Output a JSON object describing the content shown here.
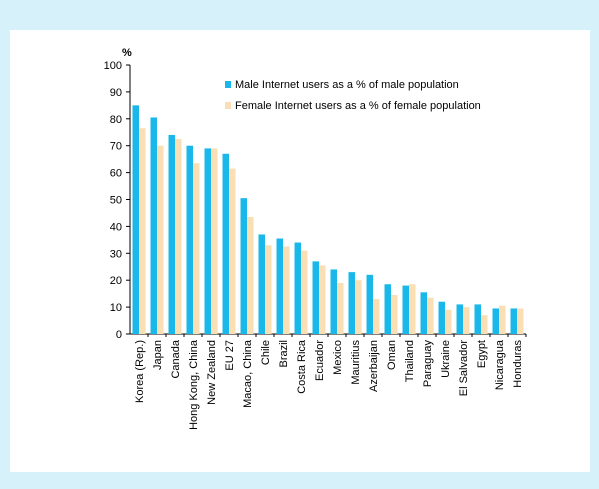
{
  "chart_data": {
    "type": "bar",
    "ylabel": "%",
    "ylim": [
      0,
      100
    ],
    "yticks": [
      0,
      10,
      20,
      30,
      40,
      50,
      60,
      70,
      80,
      90,
      100
    ],
    "legend_position": "top-right",
    "categories": [
      "Korea (Rep.)",
      "Japan",
      "Canada",
      "Hong Kong, China",
      "New Zealand",
      "EU 27",
      "Macao, China",
      "Chile",
      "Brazil",
      "Costa Rica",
      "Ecuador",
      "Mexico",
      "Mauritius",
      "Azerbaijan",
      "Oman",
      "Thailand",
      "Paraguay",
      "Ukraine",
      "El Salvador",
      "Egypt",
      "Nicaragua",
      "Honduras"
    ],
    "series": [
      {
        "name": "Male Internet users as a % of male population",
        "color": "#1ab8ea",
        "values": [
          85,
          80.5,
          74,
          70,
          69,
          67,
          50.5,
          37,
          35.5,
          34,
          27,
          24,
          23,
          22,
          18.5,
          18,
          15.5,
          12,
          11,
          11,
          9.5,
          9.5
        ]
      },
      {
        "name": "Female Internet users as a % of female population",
        "color": "#f9dfb3",
        "values": [
          76.5,
          70,
          72.5,
          63.5,
          69,
          61.5,
          43.5,
          33,
          32.5,
          31,
          25.5,
          19,
          20,
          13,
          14.5,
          18.5,
          13.5,
          9,
          10,
          7,
          10.5,
          9.5
        ]
      }
    ]
  }
}
